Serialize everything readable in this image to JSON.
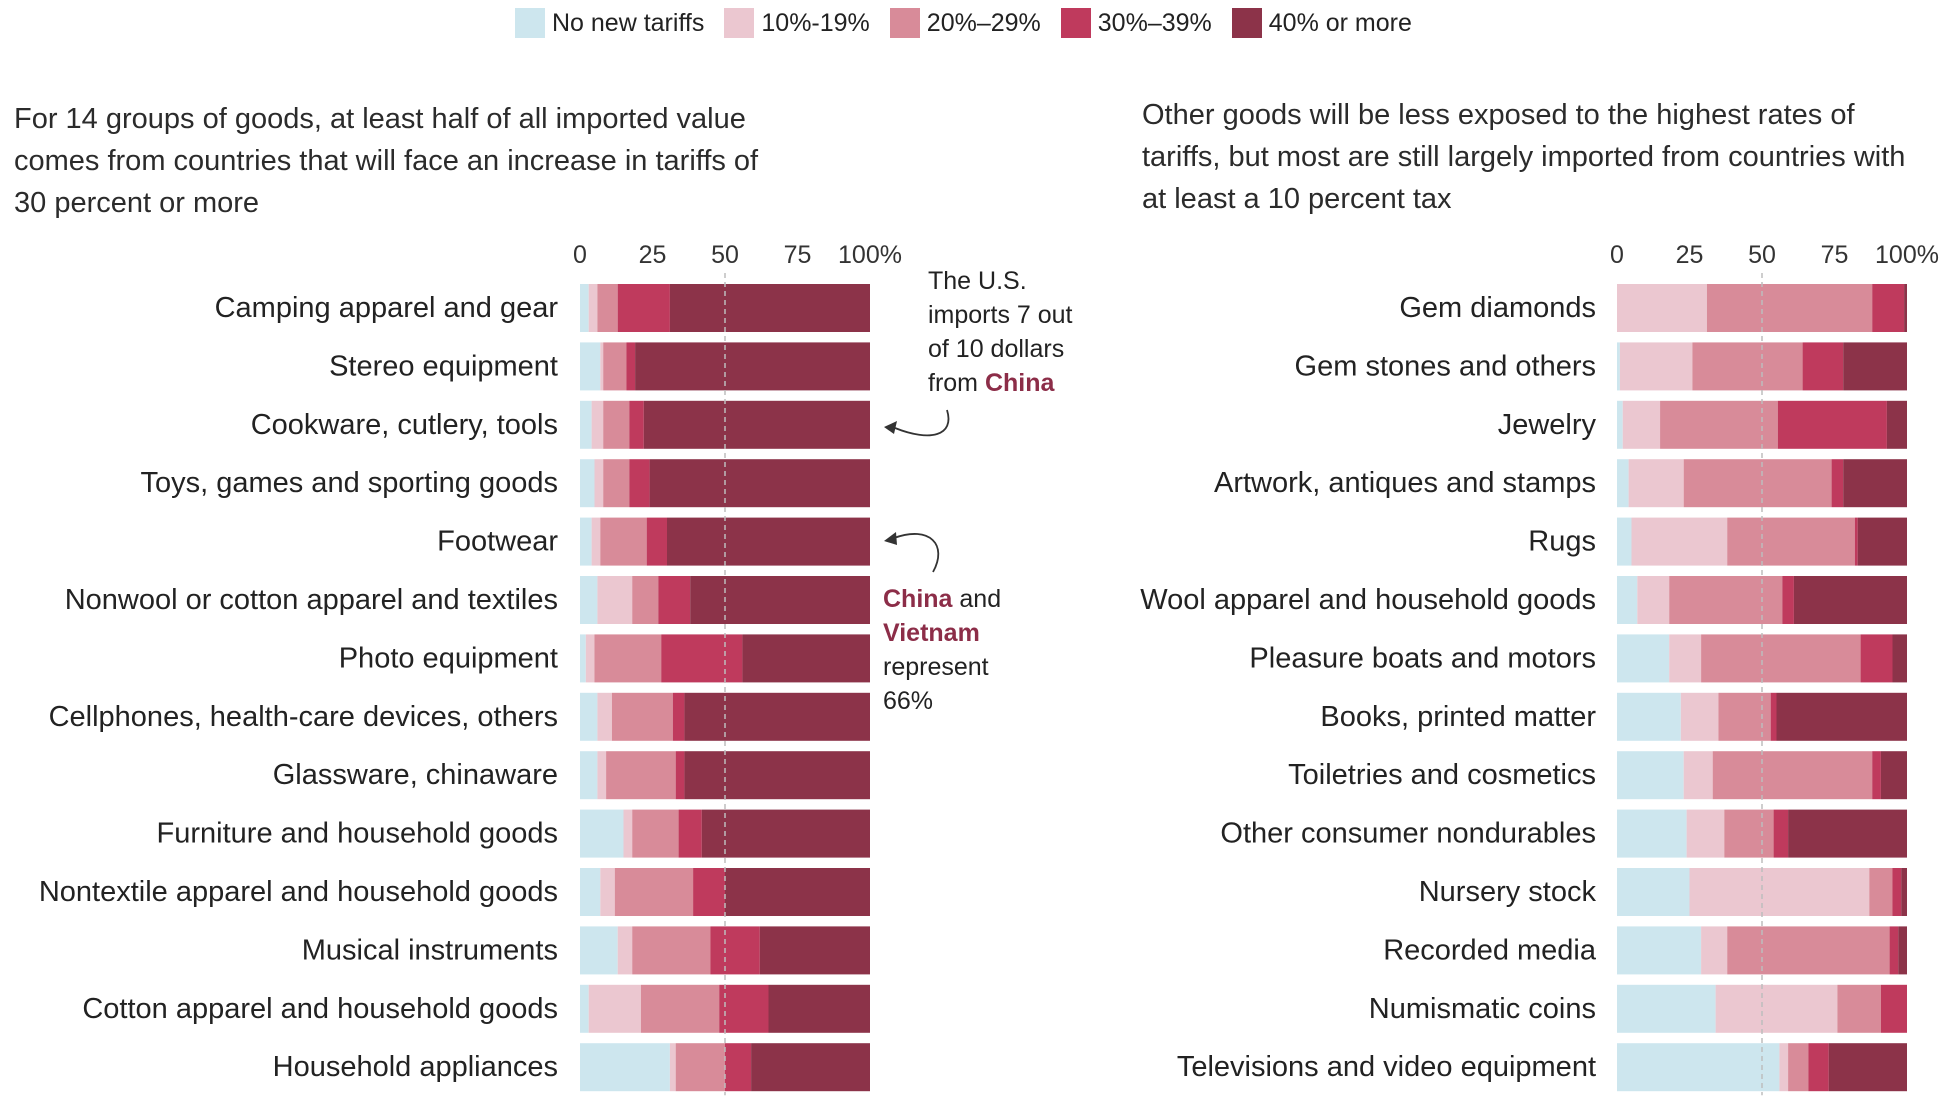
{
  "legend": [
    {
      "label": "No new tariffs",
      "color": "#cde6ee"
    },
    {
      "label": "10%-19%",
      "color": "#ebc7d0"
    },
    {
      "label": "20%–29%",
      "color": "#d88b99"
    },
    {
      "label": "30%–39%",
      "color": "#bf3a5d"
    },
    {
      "label": "40% or more",
      "color": "#8c3349"
    }
  ],
  "titles": {
    "left": "For 14 groups of goods, at least half of all imported value comes from countries that will face an increase in tariffs of 30 percent or more",
    "right": "Other goods will be less exposed to the highest rates of tariffs, but most are still largely imported from countries with at least a 10 percent tax"
  },
  "annotations": {
    "china_pre": "The U.S. imports 7 out of 10 dollars from",
    "china_bold": "China",
    "vietnam_bold_1": "China",
    "vietnam_mid": "and",
    "vietnam_bold_2": "Vietnam",
    "vietnam_post": "represent 66%"
  },
  "chart_data": [
    {
      "type": "bar",
      "orientation": "horizontal",
      "stacked": true,
      "xlim": [
        0,
        100
      ],
      "ticks": [
        "0",
        "25",
        "50",
        "75",
        "100%"
      ],
      "reference_line": 50,
      "series_names": [
        "No new tariffs",
        "10%-19%",
        "20%–29%",
        "30%–39%",
        "40% or more"
      ],
      "categories": [
        "Camping apparel and gear",
        "Stereo equipment",
        "Cookware, cutlery, tools",
        "Toys, games and sporting goods",
        "Footwear",
        "Nonwool or cotton apparel and textiles",
        "Photo equipment",
        "Cellphones, health-care devices, others",
        "Glassware, chinaware",
        "Furniture and household goods",
        "Nontextile apparel and household goods",
        "Musical instruments",
        "Cotton apparel and household goods",
        "Household appliances"
      ],
      "values": [
        [
          3,
          3,
          7,
          18,
          69
        ],
        [
          7,
          1,
          8,
          3,
          81
        ],
        [
          4,
          4,
          9,
          5,
          78
        ],
        [
          5,
          3,
          9,
          7,
          76
        ],
        [
          4,
          3,
          16,
          7,
          70
        ],
        [
          6,
          12,
          9,
          11,
          62
        ],
        [
          2,
          3,
          23,
          28,
          44
        ],
        [
          6,
          5,
          21,
          4,
          64
        ],
        [
          6,
          3,
          24,
          3,
          64
        ],
        [
          15,
          3,
          16,
          8,
          58
        ],
        [
          7,
          5,
          27,
          11,
          50
        ],
        [
          13,
          5,
          27,
          17,
          38
        ],
        [
          3,
          18,
          27,
          17,
          35
        ],
        [
          31,
          2,
          17,
          9,
          41
        ]
      ]
    },
    {
      "type": "bar",
      "orientation": "horizontal",
      "stacked": true,
      "xlim": [
        0,
        100
      ],
      "ticks": [
        "0",
        "25",
        "50",
        "75",
        "100%"
      ],
      "reference_line": 50,
      "series_names": [
        "No new tariffs",
        "10%-19%",
        "20%–29%",
        "30%–39%",
        "40% or more"
      ],
      "categories": [
        "Gem diamonds",
        "Gem stones and others",
        "Jewelry",
        "Artwork, antiques and stamps",
        "Rugs",
        "Wool apparel and household goods",
        "Pleasure boats and motors",
        "Books, printed matter",
        "Toiletries and cosmetics",
        "Other consumer nondurables",
        "Nursery stock",
        "Recorded media",
        "Numismatic coins",
        "Televisions and video equipment"
      ],
      "values": [
        [
          0,
          31,
          57,
          11,
          1
        ],
        [
          1,
          25,
          38,
          14,
          22
        ],
        [
          2,
          13,
          41,
          38,
          7
        ],
        [
          4,
          19,
          51,
          4,
          22
        ],
        [
          5,
          33,
          44,
          1,
          17
        ],
        [
          7,
          11,
          39,
          4,
          39
        ],
        [
          18,
          11,
          55,
          11,
          5
        ],
        [
          22,
          13,
          18,
          2,
          45
        ],
        [
          23,
          10,
          55,
          3,
          9
        ],
        [
          24,
          13,
          17,
          5,
          41
        ],
        [
          25,
          62,
          8,
          3,
          2
        ],
        [
          29,
          9,
          56,
          3,
          3
        ],
        [
          34,
          42,
          15,
          9,
          0
        ],
        [
          56,
          3,
          7,
          7,
          27
        ]
      ]
    }
  ]
}
